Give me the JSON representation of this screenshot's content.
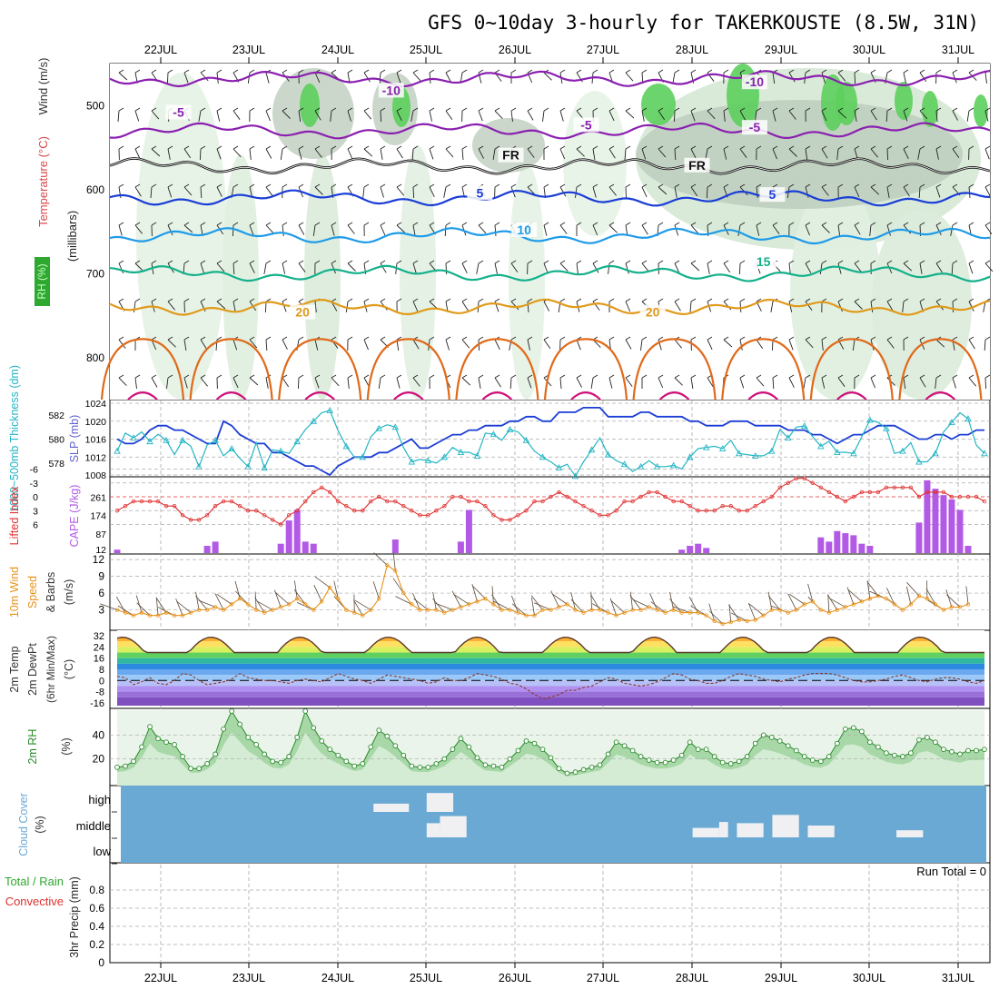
{
  "title": "GFS 0~10day 3-hourly for TAKERKOUSTE (8.5W, 31N)",
  "dates": [
    "22JUL",
    "23JUL",
    "24JUL",
    "25JUL",
    "26JUL",
    "27JUL",
    "28JUL",
    "29JUL",
    "30JUL",
    "31JUL"
  ],
  "colors": {
    "purple": "#8a1fb0",
    "black": "#111111",
    "blue": "#1a3dd6",
    "ltblue": "#1e9be8",
    "teal": "#14b08a",
    "orange": "#e09a1a",
    "dkorange": "#e06a1a",
    "magenta": "#d0107a",
    "slp": "#1a3dd6",
    "thick": "#23b5c4",
    "lifted": "#e03030",
    "cape": "#b25ae6",
    "wind": "#e8921a",
    "rh": "#2a8a2a",
    "cloud": "#6aa9d4",
    "grid": "#aaaaaa"
  },
  "chart_data": [
    {
      "type": "contour",
      "panel": "upper-air",
      "ylabel": "Temperature (°C) Wind (m/s)",
      "ylabel_parts": [
        "RH (%)",
        "Temperature",
        " (°C)",
        "Wind (m/s)"
      ],
      "ylabel2": "(millibars)",
      "yticks": [
        500,
        600,
        700,
        800
      ],
      "ylim": [
        450,
        850
      ],
      "contours": [
        {
          "name": "-10",
          "color": "purple",
          "base": 468,
          "label": "-10",
          "labels": [
            [
              2.6,
              484
            ],
            [
              6.7,
              474
            ]
          ]
        },
        {
          "name": "-5",
          "color": "purple",
          "base": 530,
          "label": "-5",
          "labels": [
            [
              0.2,
              510
            ],
            [
              4.8,
              525
            ],
            [
              6.7,
              528
            ]
          ]
        },
        {
          "name": "FR",
          "color": "black",
          "base": 572,
          "label": "FR",
          "labels": [
            [
              3.95,
              561
            ],
            [
              6.05,
              573
            ]
          ]
        },
        {
          "name": "5",
          "color": "blue",
          "base": 610,
          "label": "5",
          "labels": [
            [
              3.6,
              606
            ],
            [
              6.9,
              608
            ]
          ]
        },
        {
          "name": "10",
          "color": "ltblue",
          "base": 655,
          "label": "10",
          "labels": [
            [
              4.1,
              650
            ]
          ]
        },
        {
          "name": "15",
          "color": "teal",
          "base": 700,
          "label": "15",
          "labels": [
            [
              6.8,
              688
            ]
          ]
        },
        {
          "name": "20",
          "color": "orange",
          "base": 740,
          "label": "20",
          "labels": [
            [
              1.6,
              748
            ],
            [
              5.55,
              748
            ]
          ]
        }
      ]
    },
    {
      "type": "line",
      "panel": "slp-thickness",
      "ylabel_left": "1000~500mb Thickness (dm)",
      "ylabel_right": "SLP (mb)",
      "left_ticks": [
        578,
        580,
        582
      ],
      "right_ticks": [
        1008,
        1012,
        1016,
        1020,
        1024
      ],
      "series": [
        {
          "name": "SLP",
          "unit": "mb",
          "range": [
            1008,
            1024
          ],
          "values": [
            1016,
            1015,
            1015,
            1016,
            1018,
            1019,
            1019,
            1018,
            1018,
            1017,
            1016,
            1015,
            1015,
            1020,
            1019,
            1017,
            1016,
            1015,
            1015,
            1013,
            1013,
            1012,
            1011,
            1010,
            1010,
            1009,
            1008,
            1010,
            1011,
            1012,
            1012,
            1012,
            1013,
            1013,
            1014,
            1015,
            1016,
            1014,
            1014,
            1015,
            1016,
            1017,
            1017,
            1018,
            1018,
            1019,
            1019,
            1019,
            1020,
            1020,
            1021,
            1021,
            1020,
            1020,
            1022,
            1022,
            1022,
            1023,
            1023,
            1023,
            1021,
            1021,
            1021,
            1021,
            1022,
            1022,
            1021,
            1021,
            1021,
            1021,
            1020,
            1020,
            1019,
            1019,
            1019,
            1020,
            1020,
            1020,
            1019,
            1019,
            1019,
            1019,
            1018,
            1018,
            1018,
            1017,
            1017,
            1016,
            1015,
            1016,
            1017,
            1017,
            1018,
            1019,
            1019,
            1019,
            1018,
            1017,
            1016,
            1016,
            1017,
            1017,
            1016,
            1017,
            1017,
            1018,
            1018
          ]
        },
        {
          "name": "Thickness",
          "unit": "dm",
          "range": [
            577,
            583
          ],
          "values": [
            579.0,
            580.5,
            580.1,
            580.6,
            579.8,
            580.4,
            579.9,
            578.7,
            579.9,
            579.4,
            577.7,
            579.5,
            579.9,
            578.6,
            579.2,
            578.4,
            577.7,
            579.7,
            577.6,
            579.1,
            579.0,
            578.8,
            579.8,
            580.8,
            581.5,
            582.2,
            582.4,
            580.7,
            579.4,
            578.5,
            578.5,
            580.2,
            580.9,
            581.2,
            581.0,
            579.3,
            578.1,
            578.3,
            578.2,
            578.0,
            578.5,
            579.3,
            578.9,
            578.9,
            578.6,
            580.5,
            580.4,
            579.9,
            580.8,
            580.6,
            579.9,
            579.0,
            578.5,
            578.1,
            577.6,
            577.9,
            576.9,
            578.1,
            579.1,
            580.1,
            578.7,
            578.2,
            577.9,
            577.3,
            577.7,
            578.2,
            577.7,
            577.7,
            577.8,
            577.5,
            578.5,
            579.2,
            579.3,
            579.4,
            579.2,
            579.9,
            578.8,
            578.7,
            578.6,
            578.6,
            579.0,
            580.8,
            580.1,
            581.0,
            581.1,
            580.2,
            579.4,
            579.8,
            578.9,
            578.9,
            578.8,
            580.2,
            581.6,
            581.4,
            580.9,
            578.8,
            579.0,
            579.7,
            578.1,
            578.1,
            578.8,
            580.6,
            581.4,
            582.2,
            581.7,
            579.5,
            578.8
          ]
        }
      ]
    },
    {
      "type": "bar+line",
      "panel": "cape-lifted",
      "ylabel_left": "Lifted Index",
      "ylabel_right": "CAPE (J/kg)",
      "left_ticks": [
        "-6",
        "-3",
        "0",
        "3",
        "6"
      ],
      "right_ticks": [
        "12",
        "87",
        "174",
        "261"
      ],
      "series": [
        {
          "name": "Lifted Index",
          "values": [
            3,
            2,
            1,
            1,
            1,
            1,
            2,
            2,
            4,
            5,
            5,
            4,
            2,
            1,
            1,
            2,
            3,
            3,
            4,
            5,
            6,
            4,
            3,
            1,
            -1,
            -2,
            -1,
            1,
            2,
            3,
            3,
            1,
            0,
            1,
            1,
            2,
            3,
            4,
            4,
            3,
            2,
            0,
            0,
            1,
            1,
            2,
            4,
            5,
            5,
            4,
            3,
            1,
            1,
            0,
            -1,
            0,
            1,
            2,
            3,
            4,
            4,
            3,
            1,
            1,
            0,
            -1,
            -1,
            0,
            1,
            1,
            2,
            3,
            3,
            3,
            2,
            2,
            3,
            3,
            2,
            1,
            0,
            -2,
            -3,
            -4,
            -4,
            -3,
            -2,
            -1,
            0,
            1,
            0,
            -1,
            -1,
            -1,
            -2,
            -2,
            -2,
            -2,
            0,
            -1,
            -1,
            -1,
            0,
            0,
            0,
            0,
            1
          ]
        },
        {
          "name": "CAPE",
          "values": [
            12,
            0,
            0,
            0,
            0,
            0,
            0,
            0,
            0,
            0,
            0,
            30,
            50,
            0,
            0,
            0,
            0,
            0,
            0,
            0,
            40,
            150,
            200,
            50,
            40,
            0,
            0,
            0,
            0,
            0,
            0,
            0,
            0,
            0,
            60,
            0,
            0,
            0,
            0,
            0,
            0,
            0,
            50,
            200,
            0,
            0,
            0,
            0,
            0,
            0,
            0,
            0,
            0,
            0,
            0,
            0,
            0,
            0,
            0,
            0,
            0,
            0,
            0,
            0,
            0,
            0,
            0,
            0,
            0,
            12,
            30,
            40,
            20,
            0,
            0,
            0,
            0,
            0,
            0,
            0,
            0,
            0,
            0,
            0,
            0,
            0,
            70,
            50,
            100,
            90,
            80,
            40,
            30,
            0,
            0,
            0,
            0,
            0,
            140,
            340,
            300,
            270,
            250,
            200,
            30,
            0,
            0,
            0
          ]
        }
      ]
    },
    {
      "type": "line",
      "panel": "wind",
      "ylabel": "10m Wind Speed & Barbs (m/s)",
      "ylabel_parts": [
        "10m Wind",
        "Speed",
        "& Barbs",
        "(m/s)"
      ],
      "yticks": [
        3,
        6,
        9,
        12
      ],
      "values": [
        3,
        2.5,
        2,
        2.5,
        2,
        2,
        2.5,
        2,
        2,
        2.5,
        3,
        3,
        3.5,
        3,
        4,
        5,
        4,
        3,
        2.5,
        3,
        3.5,
        4,
        5,
        4,
        3,
        4.5,
        7,
        5,
        3,
        2.5,
        2,
        3,
        5,
        11,
        10,
        6,
        4,
        3,
        3,
        3,
        2.5,
        3,
        3.5,
        4,
        4.5,
        5,
        4,
        3,
        3,
        2.5,
        2,
        2,
        3,
        3,
        3.5,
        4,
        3,
        2.5,
        3,
        3,
        2.5,
        2,
        2.5,
        3,
        3,
        3.5,
        3,
        2.5,
        3,
        2.5,
        2.5,
        2.5,
        2,
        1,
        0.5,
        0.8,
        1.2,
        1,
        1.2,
        2,
        3,
        3,
        2.5,
        3,
        4,
        4.5,
        3,
        2.5,
        3,
        3.5,
        4,
        4.5,
        5,
        5.5,
        5,
        4,
        3,
        4,
        5.5,
        5,
        4,
        3,
        3.5,
        3.5,
        4
      ]
    },
    {
      "type": "line",
      "panel": "temp-dewpt",
      "ylabel": "2m Temp 2m DewPt (6hr Min/Max) (°C)",
      "ylabel_parts": [
        "2m Temp",
        "2m DewPt",
        "(6hr Min/Max)",
        "(°C)"
      ],
      "yticks": [
        -16,
        -8,
        0,
        8,
        16,
        24,
        32
      ],
      "temp_min": 20,
      "temp_max": 31,
      "dewpoint": [
        3,
        2,
        -3,
        -1,
        2,
        -2,
        -3,
        0,
        5,
        4,
        0,
        -3,
        -2,
        -1,
        1,
        5,
        2,
        1,
        0,
        0,
        -1,
        -2,
        0,
        1,
        0,
        -1,
        2,
        5,
        3,
        1,
        0,
        -2,
        1,
        4,
        3,
        2,
        1,
        0,
        -2,
        -1,
        2,
        0,
        0,
        2,
        5,
        4,
        3,
        1,
        -2,
        -3,
        -6,
        -10,
        -13,
        -12,
        -10,
        -7,
        -7,
        -5,
        -4,
        -1,
        2,
        1,
        -2,
        -3,
        -4,
        -3,
        -1,
        2,
        5,
        4,
        1,
        0,
        -2,
        -2,
        0,
        3,
        5,
        4,
        3,
        1,
        0,
        -1,
        1,
        2,
        4,
        5,
        5,
        5,
        4,
        2,
        0,
        -1,
        -1,
        0,
        1,
        3,
        4,
        2,
        0,
        -1,
        1,
        2,
        2,
        1,
        -1,
        -2,
        0
      ]
    },
    {
      "type": "area",
      "panel": "rh",
      "ylabel": "2m RH (%)",
      "yticks": [
        20,
        40
      ],
      "values": [
        13,
        14,
        18,
        30,
        47,
        37,
        34,
        32,
        22,
        12,
        12,
        16,
        24,
        45,
        60,
        49,
        38,
        32,
        24,
        18,
        17,
        22,
        38,
        60,
        46,
        35,
        28,
        23,
        18,
        14,
        16,
        30,
        44,
        39,
        31,
        23,
        14,
        13,
        13,
        16,
        20,
        28,
        37,
        30,
        21,
        15,
        14,
        13,
        20,
        27,
        35,
        33,
        28,
        21,
        12,
        8,
        9,
        11,
        13,
        15,
        24,
        34,
        31,
        27,
        22,
        19,
        17,
        17,
        19,
        23,
        34,
        28,
        28,
        22,
        17,
        16,
        18,
        22,
        33,
        40,
        38,
        35,
        31,
        27,
        22,
        19,
        18,
        22,
        33,
        45,
        46,
        43,
        34,
        30,
        25,
        23,
        22,
        25,
        36,
        38,
        34,
        28,
        26,
        24,
        27,
        27,
        28
      ]
    },
    {
      "type": "area",
      "panel": "cloud",
      "ylabel": "Cloud Cover (%)",
      "levels": [
        "high",
        "middle",
        "low"
      ],
      "high_blocks": [
        [
          24.4,
          24.8,
          0.35
        ],
        [
          25.0,
          25.3,
          0.8
        ]
      ],
      "middle_blocks": [
        [
          25.0,
          25.15,
          0.6
        ],
        [
          25.15,
          25.45,
          0.9
        ],
        [
          28.0,
          28.3,
          0.4
        ],
        [
          28.3,
          28.4,
          0.65
        ],
        [
          28.5,
          28.8,
          0.6
        ],
        [
          28.9,
          29.2,
          0.95
        ],
        [
          29.3,
          29.6,
          0.5
        ],
        [
          30.3,
          30.6,
          0.3
        ]
      ]
    },
    {
      "type": "bar",
      "panel": "precip",
      "ylabel": "3hr Precip (mm)",
      "ylabel_parts": [
        "Total / Rain",
        "Convective",
        "3hr Precip (mm)"
      ],
      "yticks": [
        "0",
        "0.2",
        "0.4",
        "0.6",
        "0.8"
      ],
      "ylim": [
        0,
        1
      ],
      "run_total": "Run Total = 0",
      "values": []
    }
  ]
}
